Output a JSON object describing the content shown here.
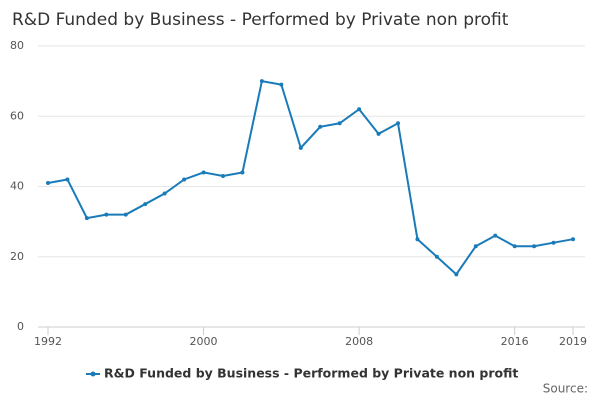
{
  "chart_data": {
    "type": "line",
    "title": "R&D Funded by Business - Performed by Private non profit",
    "x": [
      1992,
      1993,
      1994,
      1995,
      1996,
      1997,
      1998,
      1999,
      2000,
      2001,
      2002,
      2003,
      2004,
      2005,
      2006,
      2007,
      2008,
      2009,
      2010,
      2011,
      2012,
      2013,
      2014,
      2015,
      2016,
      2017,
      2018,
      2019
    ],
    "series": [
      {
        "name": "R&D Funded by Business - Performed by Private non profit",
        "color": "#1a7bb9",
        "values": [
          41,
          42,
          31,
          32,
          32,
          35,
          38,
          42,
          44,
          43,
          44,
          70,
          69,
          51,
          57,
          58,
          62,
          55,
          58,
          25,
          20,
          15,
          23,
          26,
          23,
          23,
          24,
          25
        ]
      }
    ],
    "xlim": [
      1992,
      2019
    ],
    "xticks": [
      1992,
      2000,
      2008,
      2016,
      2019
    ],
    "ylim": [
      0,
      80
    ],
    "yticks": [
      0,
      20,
      40,
      60,
      80
    ],
    "grid": true,
    "legend": "bottom",
    "source": "Source:"
  }
}
